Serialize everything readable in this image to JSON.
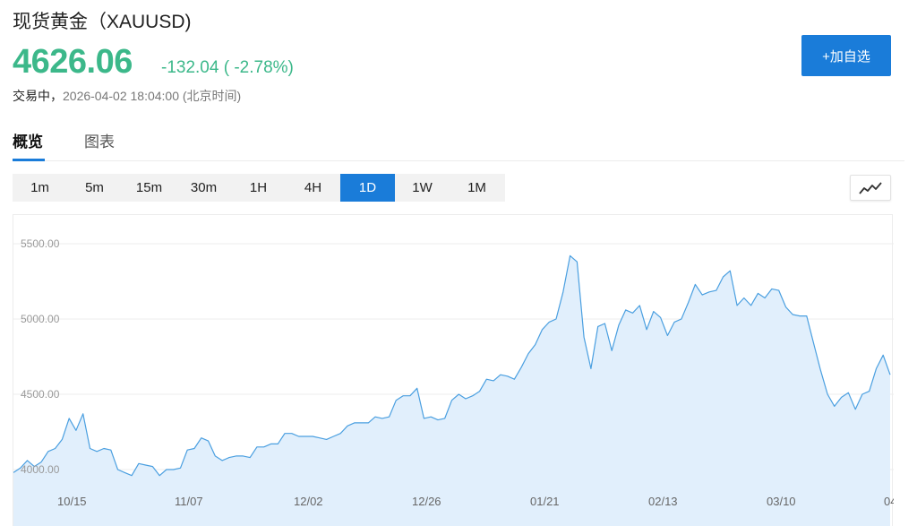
{
  "header": {
    "title": "现货黄金（XAUUSD)",
    "price": "4626.06",
    "change": "-132.04 ( -2.78%)",
    "status_label": "交易中，",
    "timestamp": "2026-04-02 18:04:00 (北京时间)",
    "add_button": "+加自选"
  },
  "tabs": [
    "概览",
    "图表"
  ],
  "periods": [
    "1m",
    "5m",
    "15m",
    "30m",
    "1H",
    "4H",
    "1D",
    "1W",
    "1M"
  ],
  "active_period": "1D",
  "chart_type_icon": "line-chart-icon",
  "colors": {
    "up_green": "#3cb88a",
    "accent": "#1a7cd9",
    "line": "#4a9fe0",
    "fill": "#e1effc"
  },
  "chart_data": {
    "type": "area",
    "title": "",
    "xlabel": "",
    "ylabel": "",
    "ylim": [
      3850,
      5700
    ],
    "yticks": [
      "5500.00",
      "5000.00",
      "4500.00",
      "4000.00"
    ],
    "ytick_values": [
      5500,
      5000,
      4500,
      4000
    ],
    "xticks": [
      "10/15",
      "11/07",
      "12/02",
      "12/26",
      "01/21",
      "02/13",
      "03/10",
      "04/0"
    ],
    "values": [
      3980,
      4010,
      4060,
      4020,
      4050,
      4120,
      4140,
      4200,
      4340,
      4260,
      4370,
      4140,
      4120,
      4140,
      4130,
      4000,
      3980,
      3960,
      4040,
      4030,
      4020,
      3960,
      4000,
      4000,
      4010,
      4130,
      4140,
      4210,
      4190,
      4090,
      4060,
      4080,
      4090,
      4090,
      4080,
      4150,
      4150,
      4170,
      4170,
      4240,
      4240,
      4220,
      4220,
      4220,
      4210,
      4200,
      4220,
      4240,
      4290,
      4310,
      4310,
      4310,
      4350,
      4340,
      4350,
      4460,
      4490,
      4490,
      4540,
      4340,
      4350,
      4330,
      4340,
      4460,
      4500,
      4470,
      4490,
      4520,
      4600,
      4590,
      4630,
      4620,
      4600,
      4680,
      4770,
      4830,
      4930,
      4980,
      5000,
      5180,
      5420,
      5380,
      4880,
      4670,
      4950,
      4970,
      4790,
      4960,
      5060,
      5040,
      5090,
      4930,
      5050,
      5010,
      4890,
      4980,
      5000,
      5110,
      5230,
      5160,
      5180,
      5190,
      5280,
      5320,
      5090,
      5140,
      5090,
      5170,
      5140,
      5200,
      5190,
      5080,
      5030,
      5020,
      5020,
      4840,
      4660,
      4500,
      4420,
      4480,
      4510,
      4400,
      4500,
      4520,
      4670,
      4760,
      4630
    ]
  }
}
